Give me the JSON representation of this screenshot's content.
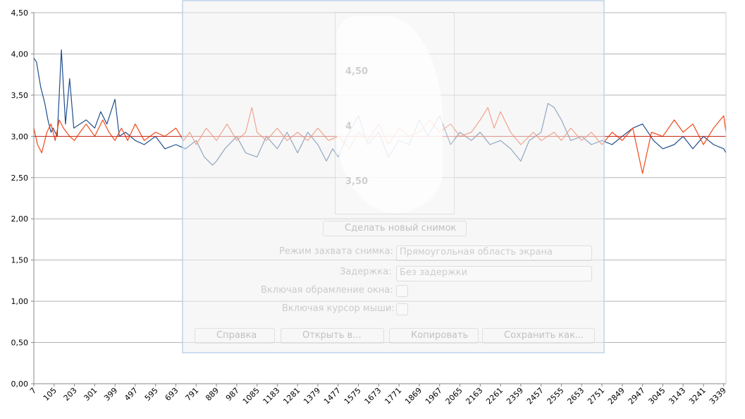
{
  "chart_data": {
    "type": "line",
    "title": "",
    "xlabel": "",
    "ylabel": "",
    "ylim": [
      0,
      4.5
    ],
    "y_ticks": [
      "0,00",
      "0,50",
      "1,00",
      "1,50",
      "2,00",
      "2,50",
      "3,00",
      "3,50",
      "4,00",
      "4,50"
    ],
    "x_ticks": [
      "7",
      "105",
      "203",
      "301",
      "399",
      "497",
      "595",
      "693",
      "791",
      "889",
      "987",
      "1085",
      "1183",
      "1281",
      "1379",
      "1477",
      "1575",
      "1673",
      "1771",
      "1869",
      "1967",
      "2065",
      "2163",
      "2261",
      "2359",
      "2457",
      "2555",
      "2653",
      "2751",
      "2849",
      "2947",
      "3045",
      "3143",
      "3241",
      "3339"
    ],
    "grid": true,
    "legend": "none",
    "reference_line": {
      "y": 3.0,
      "color": "#cc2a1a"
    },
    "series": [
      {
        "color": "#1f4e8c",
        "x": [
          7,
          20,
          40,
          60,
          75,
          90,
          100,
          120,
          140,
          160,
          180,
          200,
          230,
          260,
          301,
          330,
          360,
          399,
          420,
          450,
          497,
          540,
          595,
          640,
          693,
          740,
          791,
          830,
          870,
          889,
          930,
          987,
          1030,
          1085,
          1130,
          1183,
          1230,
          1281,
          1330,
          1379,
          1420,
          1450,
          1477,
          1520,
          1575,
          1620,
          1673,
          1720,
          1771,
          1820,
          1869,
          1910,
          1967,
          2020,
          2065,
          2120,
          2163,
          2210,
          2261,
          2310,
          2359,
          2400,
          2457,
          2490,
          2520,
          2555,
          2600,
          2653,
          2700,
          2751,
          2800,
          2849,
          2900,
          2947,
          3000,
          3045,
          3100,
          3143,
          3190,
          3241,
          3290,
          3339,
          3350
        ],
        "y": [
          3.95,
          3.9,
          3.6,
          3.4,
          3.2,
          3.05,
          3.1,
          3.0,
          4.05,
          3.15,
          3.7,
          3.1,
          3.15,
          3.2,
          3.1,
          3.3,
          3.15,
          3.45,
          3.0,
          3.05,
          2.95,
          2.9,
          3.0,
          2.85,
          2.9,
          2.85,
          2.95,
          2.75,
          2.65,
          2.7,
          2.85,
          3.0,
          2.8,
          2.75,
          3.0,
          2.85,
          3.05,
          2.8,
          3.05,
          2.9,
          2.7,
          2.85,
          2.75,
          3.0,
          3.25,
          2.9,
          3.05,
          2.75,
          2.95,
          2.9,
          3.2,
          3.0,
          3.25,
          2.9,
          3.05,
          2.95,
          3.05,
          2.9,
          2.95,
          2.85,
          2.7,
          2.95,
          3.05,
          3.4,
          3.35,
          3.2,
          2.95,
          3.0,
          2.9,
          2.95,
          2.9,
          3.0,
          3.1,
          3.15,
          2.95,
          2.85,
          2.9,
          3.0,
          2.85,
          3.0,
          2.9,
          2.85,
          2.8
        ]
      },
      {
        "color": "#f04a1a",
        "x": [
          7,
          25,
          45,
          70,
          90,
          110,
          130,
          150,
          180,
          203,
          230,
          260,
          301,
          340,
          370,
          399,
          430,
          460,
          497,
          540,
          595,
          640,
          693,
          730,
          760,
          791,
          840,
          889,
          940,
          987,
          1030,
          1060,
          1085,
          1130,
          1183,
          1230,
          1281,
          1330,
          1379,
          1430,
          1477,
          1530,
          1575,
          1620,
          1673,
          1720,
          1771,
          1820,
          1869,
          1920,
          1967,
          2020,
          2065,
          2120,
          2163,
          2200,
          2230,
          2261,
          2310,
          2359,
          2420,
          2457,
          2520,
          2555,
          2600,
          2653,
          2700,
          2751,
          2800,
          2849,
          2900,
          2947,
          2990,
          3045,
          3100,
          3143,
          3190,
          3241,
          3290,
          3339,
          3350
        ],
        "y": [
          3.1,
          2.9,
          2.8,
          3.05,
          3.15,
          2.95,
          3.2,
          3.1,
          3.0,
          2.95,
          3.05,
          3.15,
          3.0,
          3.2,
          3.05,
          2.95,
          3.1,
          2.95,
          3.15,
          2.95,
          3.05,
          3.0,
          3.1,
          2.95,
          3.05,
          2.9,
          3.1,
          2.95,
          3.15,
          2.95,
          3.05,
          3.35,
          3.05,
          2.95,
          3.1,
          2.95,
          3.05,
          2.95,
          3.1,
          2.95,
          3.0,
          2.85,
          3.05,
          2.95,
          3.15,
          2.9,
          3.1,
          3.0,
          3.05,
          3.2,
          3.05,
          3.15,
          3.0,
          3.05,
          3.2,
          3.35,
          3.1,
          3.3,
          3.05,
          2.9,
          3.05,
          2.95,
          3.05,
          2.95,
          3.1,
          2.95,
          3.05,
          2.9,
          3.05,
          2.95,
          3.1,
          2.55,
          3.05,
          3.0,
          3.2,
          3.05,
          3.15,
          2.9,
          3.1,
          3.25,
          3.05
        ]
      }
    ]
  },
  "overlay": {
    "new_snapshot_label": "Сделать новый снимок",
    "capture_mode_label": "Режим захвата снимка:",
    "capture_mode_value": "Прямоугольная область экрана",
    "delay_label": "Задержка:",
    "delay_value": "Без задержки",
    "include_border_label": "Включая обрамление окна:",
    "include_cursor_label": "Включая курсор мыши:",
    "help_button": "Справка",
    "open_with_button": "Открыть в...",
    "copy_button": "Копировать",
    "save_button": "Сохранить как...",
    "preview_tick_1": "4,50",
    "preview_tick_2": "4",
    "preview_tick_3": "3,50"
  }
}
